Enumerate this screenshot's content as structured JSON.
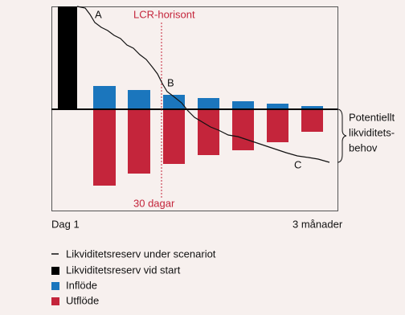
{
  "diagram": {
    "labels": {
      "a": "A",
      "b": "B",
      "c": "C",
      "lcr": "LCR-horisont",
      "days30": "30 dagar",
      "start": "Dag 1",
      "end": "3 månader"
    },
    "brace_text": [
      "Potentiellt",
      "likviditets-",
      "behov"
    ],
    "legend": [
      "Likviditetsreserv under scenariot",
      "Likviditetsreserv vid start",
      "Inflöde",
      "Utflöde"
    ]
  }
}
